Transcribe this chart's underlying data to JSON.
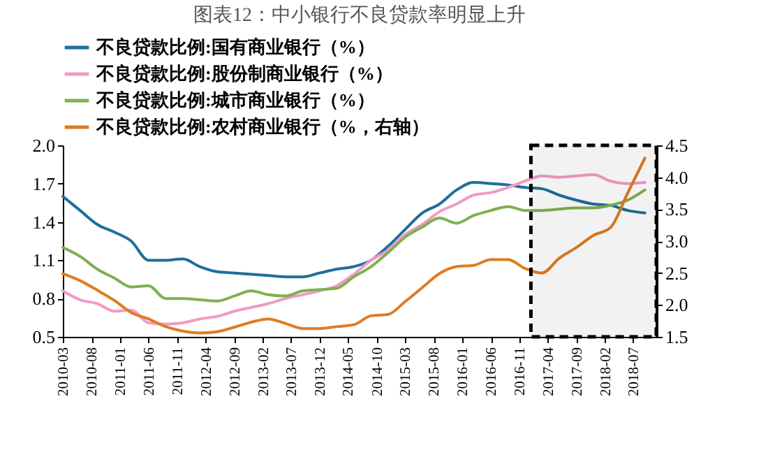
{
  "chart_data": {
    "type": "line",
    "title": "图表12：中小银行不良贷款率明显上升",
    "x": [
      "2010-03",
      "2010-06",
      "2010-09",
      "2010-12",
      "2011-03",
      "2011-06",
      "2011-09",
      "2011-12",
      "2012-03",
      "2012-06",
      "2012-09",
      "2012-12",
      "2013-03",
      "2013-06",
      "2013-09",
      "2013-12",
      "2014-03",
      "2014-06",
      "2014-09",
      "2014-12",
      "2015-03",
      "2015-06",
      "2015-09",
      "2015-12",
      "2016-03",
      "2016-06",
      "2016-09",
      "2016-12",
      "2017-03",
      "2017-06",
      "2017-09",
      "2017-12",
      "2018-03",
      "2018-06",
      "2018-09"
    ],
    "series": [
      {
        "name": "不良贷款比例:国有商业银行（%）",
        "color": "#1f6e9c",
        "values": [
          1.6,
          1.49,
          1.38,
          1.32,
          1.25,
          1.1,
          1.1,
          1.11,
          1.05,
          1.01,
          1.0,
          0.99,
          0.98,
          0.97,
          0.97,
          1.0,
          1.03,
          1.05,
          1.1,
          1.21,
          1.34,
          1.47,
          1.54,
          1.65,
          1.71,
          1.7,
          1.69,
          1.67,
          1.66,
          1.61,
          1.57,
          1.54,
          1.53,
          1.49,
          1.47
        ]
      },
      {
        "name": "不良贷款比例:股份制商业银行（%）",
        "color": "#f29ac6",
        "values": [
          0.86,
          0.79,
          0.76,
          0.7,
          0.71,
          0.61,
          0.6,
          0.61,
          0.64,
          0.66,
          0.7,
          0.73,
          0.76,
          0.8,
          0.83,
          0.86,
          0.9,
          0.99,
          1.1,
          1.18,
          1.3,
          1.38,
          1.48,
          1.54,
          1.61,
          1.63,
          1.67,
          1.72,
          1.76,
          1.75,
          1.76,
          1.77,
          1.72,
          1.7,
          1.71
        ]
      },
      {
        "name": "不良贷款比例:城市商业银行（%）",
        "color": "#7fb050",
        "values": [
          1.2,
          1.13,
          1.03,
          0.96,
          0.89,
          0.9,
          0.8,
          0.8,
          0.79,
          0.78,
          0.82,
          0.86,
          0.83,
          0.82,
          0.86,
          0.87,
          0.88,
          0.97,
          1.05,
          1.16,
          1.28,
          1.36,
          1.43,
          1.39,
          1.45,
          1.49,
          1.52,
          1.49,
          1.49,
          1.5,
          1.51,
          1.51,
          1.53,
          1.57,
          1.65
        ]
      },
      {
        "name": "不良贷款比例:农村商业银行（%，右轴）",
        "color": "#e07b22",
        "axis": "y2",
        "values": [
          2.49,
          2.38,
          2.23,
          2.07,
          1.88,
          1.78,
          1.66,
          1.59,
          1.56,
          1.58,
          1.65,
          1.73,
          1.78,
          1.71,
          1.63,
          1.63,
          1.66,
          1.69,
          1.83,
          1.85,
          2.05,
          2.27,
          2.49,
          2.6,
          2.62,
          2.71,
          2.71,
          2.57,
          2.5,
          2.73,
          2.9,
          3.09,
          3.21,
          3.75,
          4.3
        ]
      }
    ],
    "xlim": [
      "2010-03",
      "2018-11"
    ],
    "xticks": [
      "2010-03",
      "2010-08",
      "2011-01",
      "2011-06",
      "2011-11",
      "2012-04",
      "2012-09",
      "2013-02",
      "2013-07",
      "2013-12",
      "2014-05",
      "2014-10",
      "2015-03",
      "2015-08",
      "2016-01",
      "2016-06",
      "2016-11",
      "2017-04",
      "2017-09",
      "2018-02",
      "2018-07"
    ],
    "ylim": [
      0.5,
      2.0
    ],
    "yticks": [
      {
        "value": 0.5,
        "label": "0.5"
      },
      {
        "value": 0.8,
        "label": "0.8"
      },
      {
        "value": 1.1,
        "label": "1.1"
      },
      {
        "value": 1.4,
        "label": "1.4"
      },
      {
        "value": 1.7,
        "label": "1.7"
      },
      {
        "value": 2.0,
        "label": "2.0"
      }
    ],
    "y2lim": [
      1.5,
      4.5
    ],
    "y2ticks": [
      {
        "value": 1.5,
        "label": "1.5"
      },
      {
        "value": 2.0,
        "label": "2.0"
      },
      {
        "value": 2.5,
        "label": "2.5"
      },
      {
        "value": 3.0,
        "label": "3.0"
      },
      {
        "value": 3.5,
        "label": "3.5"
      },
      {
        "value": 4.0,
        "label": "4.0"
      },
      {
        "value": 4.5,
        "label": "4.5"
      }
    ],
    "bands": [
      {
        "axis": "x",
        "from": "2017-01",
        "to": "2018-11"
      }
    ],
    "legend": "top",
    "grid": false,
    "marker": "none",
    "line_style": "solid"
  }
}
